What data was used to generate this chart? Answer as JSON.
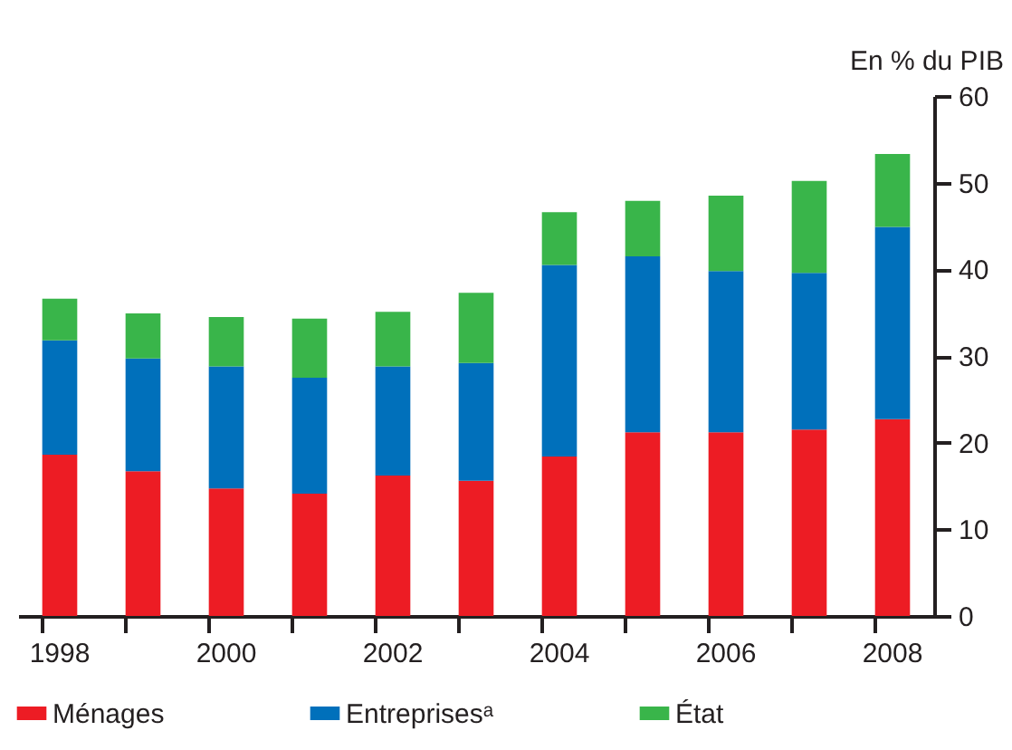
{
  "chart_data": {
    "type": "bar",
    "stacked": true,
    "ylabel": "En % du PIB",
    "categories": [
      "1998",
      null,
      "2000",
      null,
      "2002",
      null,
      "2004",
      null,
      "2006",
      null,
      "2008"
    ],
    "series": [
      {
        "name": "Ménages",
        "color": "#ed1c24",
        "values": [
          18.6,
          16.7,
          14.7,
          14.1,
          16.2,
          15.6,
          18.4,
          21.2,
          21.2,
          21.5,
          22.7
        ]
      },
      {
        "name": "Entreprisesᵃ",
        "color": "#0070bb",
        "values": [
          13.2,
          13.0,
          14.1,
          13.4,
          12.6,
          13.6,
          22.1,
          20.3,
          18.6,
          18.1,
          22.2
        ]
      },
      {
        "name": "État",
        "color": "#39b54a",
        "values": [
          4.8,
          5.2,
          5.7,
          6.8,
          6.3,
          8.1,
          6.1,
          6.4,
          8.7,
          10.6,
          8.4
        ]
      }
    ],
    "ylim": [
      0,
      60
    ],
    "yticks": [
      0,
      10,
      20,
      30,
      40,
      50,
      60
    ],
    "legend": "bottom",
    "grid": false
  }
}
